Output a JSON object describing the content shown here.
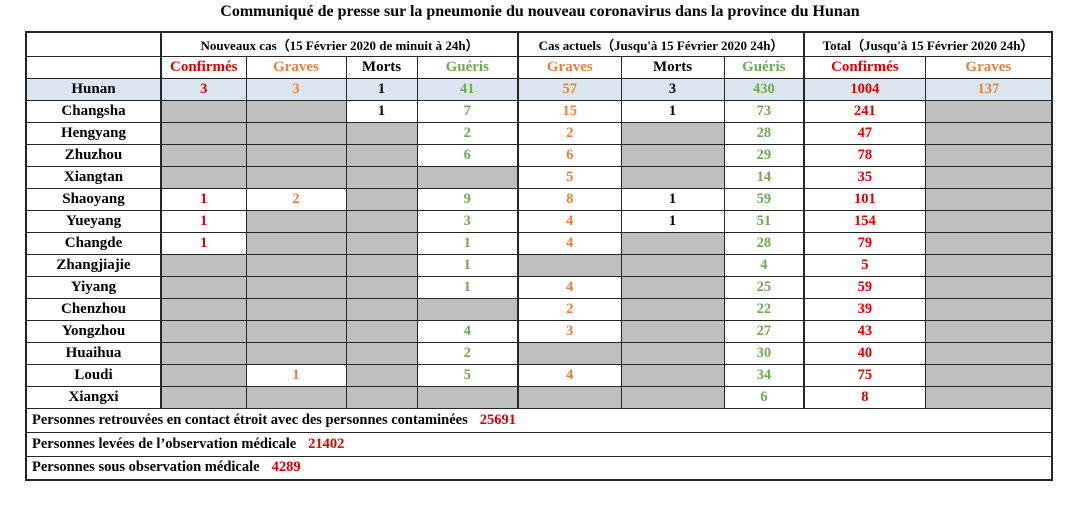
{
  "title": "Communiqué de presse sur la pneumonie du nouveau coronavirus dans la province du Hunan",
  "colors": {
    "red": "#dd0000",
    "orange": "#e8803a",
    "green": "#6faa50",
    "black": "#000000",
    "highlight_row_bg": "#dce6f1",
    "empty_cell_bg": "#bfbfbf",
    "border": "#262626"
  },
  "table": {
    "groups": [
      {
        "label": "Nouveaux cas（15 Février 2020 de minuit à 24h）",
        "span": 4
      },
      {
        "label": "Cas actuels（Jusqu'à 15 Février 2020 24h）",
        "span": 3
      },
      {
        "label": "Total（Jusqu'à 15 Février 2020 24h）",
        "span": 2
      }
    ],
    "columns": [
      {
        "label": "Confirmés",
        "color": "red"
      },
      {
        "label": "Graves",
        "color": "orange"
      },
      {
        "label": "Morts",
        "color": "black"
      },
      {
        "label": "Guéris",
        "color": "green"
      },
      {
        "label": "Graves",
        "color": "orange"
      },
      {
        "label": "Morts",
        "color": "black"
      },
      {
        "label": "Guéris",
        "color": "green"
      },
      {
        "label": "Confirmés",
        "color": "red"
      },
      {
        "label": "Graves",
        "color": "orange"
      }
    ],
    "rows": [
      {
        "region": "Hunan",
        "highlight": true,
        "values": [
          "3",
          "3",
          "1",
          "41",
          "57",
          "3",
          "430",
          "1004",
          "137"
        ]
      },
      {
        "region": "Changsha",
        "highlight": false,
        "values": [
          "",
          "",
          "1",
          "7",
          "15",
          "1",
          "73",
          "241",
          ""
        ]
      },
      {
        "region": "Hengyang",
        "highlight": false,
        "values": [
          "",
          "",
          "",
          "2",
          "2",
          "",
          "28",
          "47",
          ""
        ]
      },
      {
        "region": "Zhuzhou",
        "highlight": false,
        "values": [
          "",
          "",
          "",
          "6",
          "6",
          "",
          "29",
          "78",
          ""
        ]
      },
      {
        "region": "Xiangtan",
        "highlight": false,
        "values": [
          "",
          "",
          "",
          "",
          "5",
          "",
          "14",
          "35",
          ""
        ]
      },
      {
        "region": "Shaoyang",
        "highlight": false,
        "values": [
          "1",
          "2",
          "",
          "9",
          "8",
          "1",
          "59",
          "101",
          ""
        ]
      },
      {
        "region": "Yueyang",
        "highlight": false,
        "values": [
          "1",
          "",
          "",
          "3",
          "4",
          "1",
          "51",
          "154",
          ""
        ]
      },
      {
        "region": "Changde",
        "highlight": false,
        "values": [
          "1",
          "",
          "",
          "1",
          "4",
          "",
          "28",
          "79",
          ""
        ]
      },
      {
        "region": "Zhangjiajie",
        "highlight": false,
        "values": [
          "",
          "",
          "",
          "1",
          "",
          "",
          "4",
          "5",
          ""
        ]
      },
      {
        "region": "Yiyang",
        "highlight": false,
        "values": [
          "",
          "",
          "",
          "1",
          "4",
          "",
          "25",
          "59",
          ""
        ]
      },
      {
        "region": "Chenzhou",
        "highlight": false,
        "values": [
          "",
          "",
          "",
          "",
          "2",
          "",
          "22",
          "39",
          ""
        ]
      },
      {
        "region": "Yongzhou",
        "highlight": false,
        "values": [
          "",
          "",
          "",
          "4",
          "3",
          "",
          "27",
          "43",
          ""
        ]
      },
      {
        "region": "Huaihua",
        "highlight": false,
        "values": [
          "",
          "",
          "",
          "2",
          "",
          "",
          "30",
          "40",
          ""
        ]
      },
      {
        "region": "Loudi",
        "highlight": false,
        "values": [
          "",
          "1",
          "",
          "5",
          "4",
          "",
          "34",
          "75",
          ""
        ]
      },
      {
        "region": "Xiangxi",
        "highlight": false,
        "values": [
          "",
          "",
          "",
          "",
          "",
          "",
          "6",
          "8",
          ""
        ]
      }
    ],
    "footers": [
      {
        "label": "Personnes retrouvées en contact étroit avec des personnes contaminées",
        "value": "25691"
      },
      {
        "label": "Personnes levées de l’observation médicale",
        "value": "21402"
      },
      {
        "label": "Personnes sous observation médicale",
        "value": "4289"
      }
    ]
  }
}
